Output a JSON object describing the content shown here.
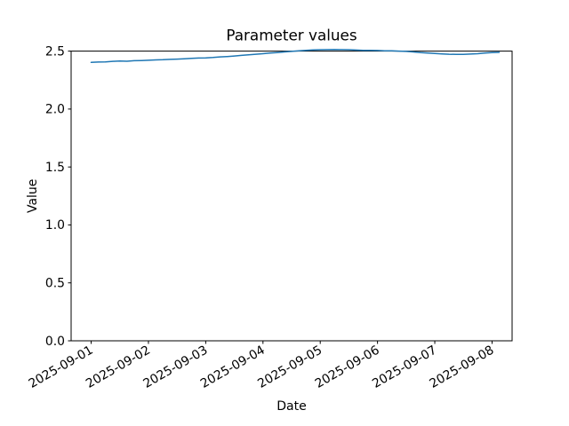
{
  "figure": {
    "background_color": "#ffffff",
    "spine_color": "#000000",
    "text_color": "#000000"
  },
  "chart_data": {
    "type": "line",
    "title": "Parameter values",
    "xlabel": "Date",
    "ylabel": "Value",
    "grid": false,
    "legend": "none",
    "ylim": [
      0.0,
      2.5
    ],
    "xlim_days": [
      -0.35,
      7.35
    ],
    "y_tick_labels": [
      "0.0",
      "0.5",
      "1.0",
      "1.5",
      "2.0",
      "2.5"
    ],
    "x_tick_labels": [
      "2025-09-01",
      "2025-09-02",
      "2025-09-03",
      "2025-09-04",
      "2025-09-05",
      "2025-09-06",
      "2025-09-07",
      "2025-09-08"
    ],
    "x_tick_rotation_deg": 30,
    "series": [
      {
        "name": "parameter-values",
        "color": "#1f77b4",
        "line_width": 1.5,
        "x_days": [
          0.0,
          0.125,
          0.25,
          0.375,
          0.5,
          0.625,
          0.75,
          0.875,
          1.0,
          1.125,
          1.25,
          1.375,
          1.5,
          1.625,
          1.75,
          1.875,
          2.0,
          2.125,
          2.25,
          2.375,
          2.5,
          2.625,
          2.75,
          2.875,
          3.0,
          3.125,
          3.25,
          3.375,
          3.5,
          3.625,
          3.75,
          3.875,
          4.0,
          4.125,
          4.25,
          4.375,
          4.5,
          4.625,
          4.75,
          4.875,
          5.0,
          5.125,
          5.25,
          5.375,
          5.5,
          5.625,
          5.75,
          5.875,
          6.0,
          6.125,
          6.25,
          6.375,
          6.5,
          6.625,
          6.75,
          6.875,
          7.0,
          7.125
        ],
        "values": [
          2.403,
          2.406,
          2.407,
          2.412,
          2.414,
          2.413,
          2.417,
          2.419,
          2.421,
          2.424,
          2.426,
          2.429,
          2.431,
          2.434,
          2.437,
          2.44,
          2.442,
          2.445,
          2.45,
          2.453,
          2.458,
          2.463,
          2.468,
          2.473,
          2.478,
          2.483,
          2.488,
          2.493,
          2.498,
          2.503,
          2.507,
          2.51,
          2.512,
          2.513,
          2.514,
          2.513,
          2.512,
          2.509,
          2.507,
          2.506,
          2.505,
          2.503,
          2.502,
          2.5,
          2.498,
          2.493,
          2.488,
          2.484,
          2.48,
          2.476,
          2.473,
          2.472,
          2.472,
          2.475,
          2.478,
          2.483,
          2.488,
          2.489
        ]
      }
    ]
  }
}
